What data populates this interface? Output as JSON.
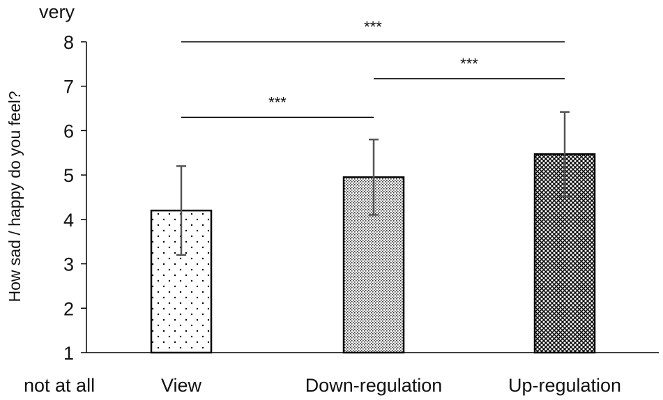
{
  "chart_data": {
    "type": "bar",
    "categories": [
      "View",
      "Down-regulation",
      "Up-regulation"
    ],
    "values": [
      4.2,
      4.95,
      5.47
    ],
    "error": [
      1.0,
      0.85,
      0.95
    ],
    "patterns": [
      "sparse-dots",
      "dense-dots",
      "diamond-mesh"
    ],
    "ylabel": "How sad / happy do you feel?",
    "ylim": [
      1,
      8
    ],
    "yticks": [
      "1",
      "2",
      "3",
      "4",
      "5",
      "6",
      "7",
      "8"
    ],
    "ytick_values": [
      1,
      2,
      3,
      4,
      5,
      6,
      7,
      8
    ],
    "y_top_anchor": "very",
    "y_bottom_anchor": "not at all",
    "grid": false,
    "significance": [
      {
        "from": 0,
        "to": 1,
        "label": "***",
        "y": 6.3
      },
      {
        "from": 1,
        "to": 2,
        "label": "***",
        "y": 7.17
      },
      {
        "from": 0,
        "to": 2,
        "label": "***",
        "y": 8.0
      }
    ]
  }
}
